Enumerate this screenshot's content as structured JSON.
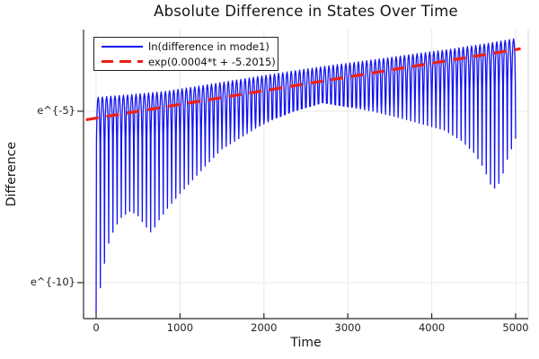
{
  "title": "Absolute Difference in States Over Time",
  "axes": {
    "xlabel": "Time",
    "ylabel": "Difference",
    "x_ticks": [
      "0",
      "1000",
      "2000",
      "3000",
      "4000",
      "5000"
    ],
    "y_ticks": [
      "e^{-5}",
      "e^{-10}"
    ]
  },
  "legend": {
    "entries": [
      {
        "label": "ln(difference in mode1)",
        "color": "#1313ef",
        "style": "solid"
      },
      {
        "label": "exp(0.0004*t + -5.2015)",
        "color": "#ee2016",
        "style": "dashed"
      }
    ]
  },
  "colors": {
    "series_blue": "#1313ef",
    "fit_red": "#ee2016",
    "grid": "#e9e9e9",
    "axis": "#2a2a2a",
    "frame_light": "#d9d9d9",
    "text": "#151515",
    "background": "#ffffff"
  },
  "chart_data": {
    "type": "line",
    "title": "Absolute Difference in States Over Time",
    "xlabel": "Time",
    "ylabel": "Difference",
    "x_tick_values": [
      0,
      1000,
      2000,
      3000,
      4000,
      5000
    ],
    "y_tick_values_ln": [
      -5,
      -10
    ],
    "y_tick_labels": [
      "e^{-5}",
      "e^{-10}"
    ],
    "xlim": [
      -150,
      5150
    ],
    "ylim_ln": [
      -11.05,
      -2.62
    ],
    "y_scale": "ln",
    "grid": true,
    "legend_position": "top-left",
    "series": [
      {
        "name": "ln(difference in mode1)",
        "style": "oscillatory-band",
        "color": "#1313ef",
        "oscillation_period_t": 50,
        "top_envelope_ln": [
          [
            0,
            -4.6
          ],
          [
            400,
            -4.52
          ],
          [
            800,
            -4.43
          ],
          [
            1200,
            -4.28
          ],
          [
            1600,
            -4.12
          ],
          [
            2000,
            -3.96
          ],
          [
            2400,
            -3.81
          ],
          [
            2700,
            -3.7
          ],
          [
            3000,
            -3.6
          ],
          [
            3400,
            -3.47
          ],
          [
            3800,
            -3.33
          ],
          [
            4200,
            -3.2
          ],
          [
            4600,
            -3.05
          ],
          [
            5000,
            -2.88
          ]
        ],
        "bottom_envelope_ln": [
          [
            0,
            -10.9
          ],
          [
            40,
            -10.3
          ],
          [
            90,
            -9.55
          ],
          [
            150,
            -8.85
          ],
          [
            220,
            -8.4
          ],
          [
            300,
            -8.1
          ],
          [
            410,
            -7.9
          ],
          [
            500,
            -8.05
          ],
          [
            590,
            -8.35
          ],
          [
            660,
            -8.55
          ],
          [
            740,
            -8.2
          ],
          [
            860,
            -7.8
          ],
          [
            1000,
            -7.4
          ],
          [
            1150,
            -7.0
          ],
          [
            1300,
            -6.6
          ],
          [
            1500,
            -6.1
          ],
          [
            1700,
            -5.8
          ],
          [
            1900,
            -5.5
          ],
          [
            2100,
            -5.25
          ],
          [
            2350,
            -5.0
          ],
          [
            2700,
            -4.75
          ],
          [
            3000,
            -4.87
          ],
          [
            3300,
            -5.0
          ],
          [
            3600,
            -5.18
          ],
          [
            3900,
            -5.38
          ],
          [
            4150,
            -5.55
          ],
          [
            4350,
            -5.85
          ],
          [
            4500,
            -6.2
          ],
          [
            4620,
            -6.65
          ],
          [
            4730,
            -7.3
          ],
          [
            4820,
            -7.05
          ],
          [
            4900,
            -6.4
          ],
          [
            5000,
            -5.8
          ]
        ]
      },
      {
        "name": "exp(0.0004*t + -5.2015)",
        "style": "fit-line-dashed",
        "color": "#ee2016",
        "slope": 0.0004,
        "intercept_ln": -5.2015,
        "t_range": [
          -120,
          5060
        ]
      }
    ]
  }
}
